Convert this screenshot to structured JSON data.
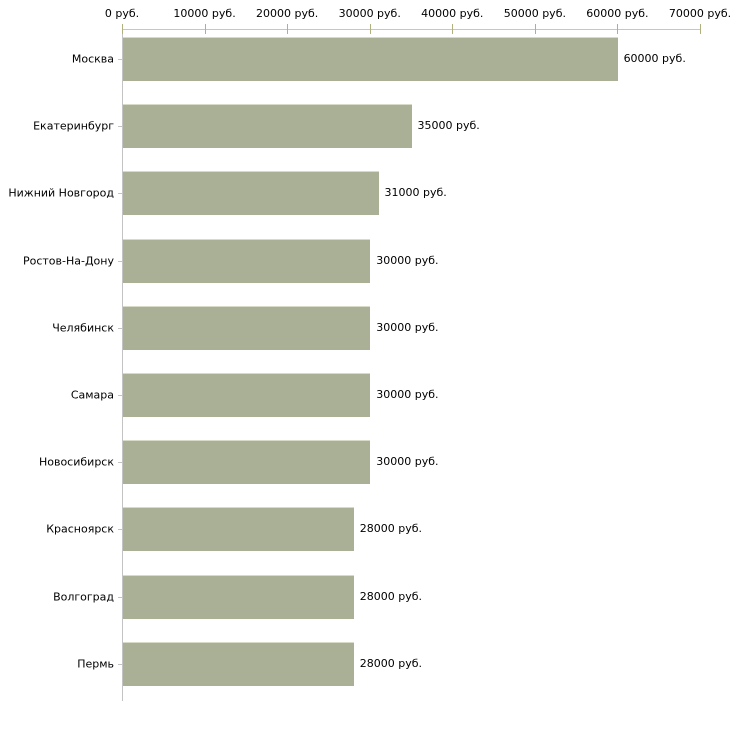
{
  "chart_data": {
    "type": "bar",
    "orientation": "horizontal",
    "title": "",
    "categories": [
      "Москва",
      "Екатеринбург",
      "Нижний Новгород",
      "Ростов-На-Дону",
      "Челябинск",
      "Самара",
      "Новосибирск",
      "Красноярск",
      "Волгоград",
      "Пермь"
    ],
    "values": [
      60000,
      35000,
      31000,
      30000,
      30000,
      30000,
      30000,
      28000,
      28000,
      28000
    ],
    "value_labels": [
      "60000 руб.",
      "35000 руб.",
      "31000 руб.",
      "30000 руб.",
      "30000 руб.",
      "30000 руб.",
      "30000 руб.",
      "28000 руб.",
      "28000 руб.",
      "28000 руб."
    ],
    "x_axis": {
      "min": 0,
      "max": 70000,
      "ticks": [
        0,
        10000,
        20000,
        30000,
        40000,
        50000,
        60000,
        70000
      ],
      "tick_labels": [
        "0 руб.",
        "10000 руб.",
        "20000 руб.",
        "30000 руб.",
        "40000 руб.",
        "50000 руб.",
        "60000 руб.",
        "70000 руб."
      ],
      "unit": "руб."
    },
    "xlabel": "",
    "ylabel": "",
    "legend": false,
    "grid": false,
    "colors": {
      "bar": "#a9b095",
      "bar_edge": "#d8dbc8",
      "axis_line": "#cbcba2",
      "axis_tick": "#b0b080",
      "category_axis_line": "#c3c3c3",
      "text": "#000000",
      "background": "#ffffff"
    }
  }
}
